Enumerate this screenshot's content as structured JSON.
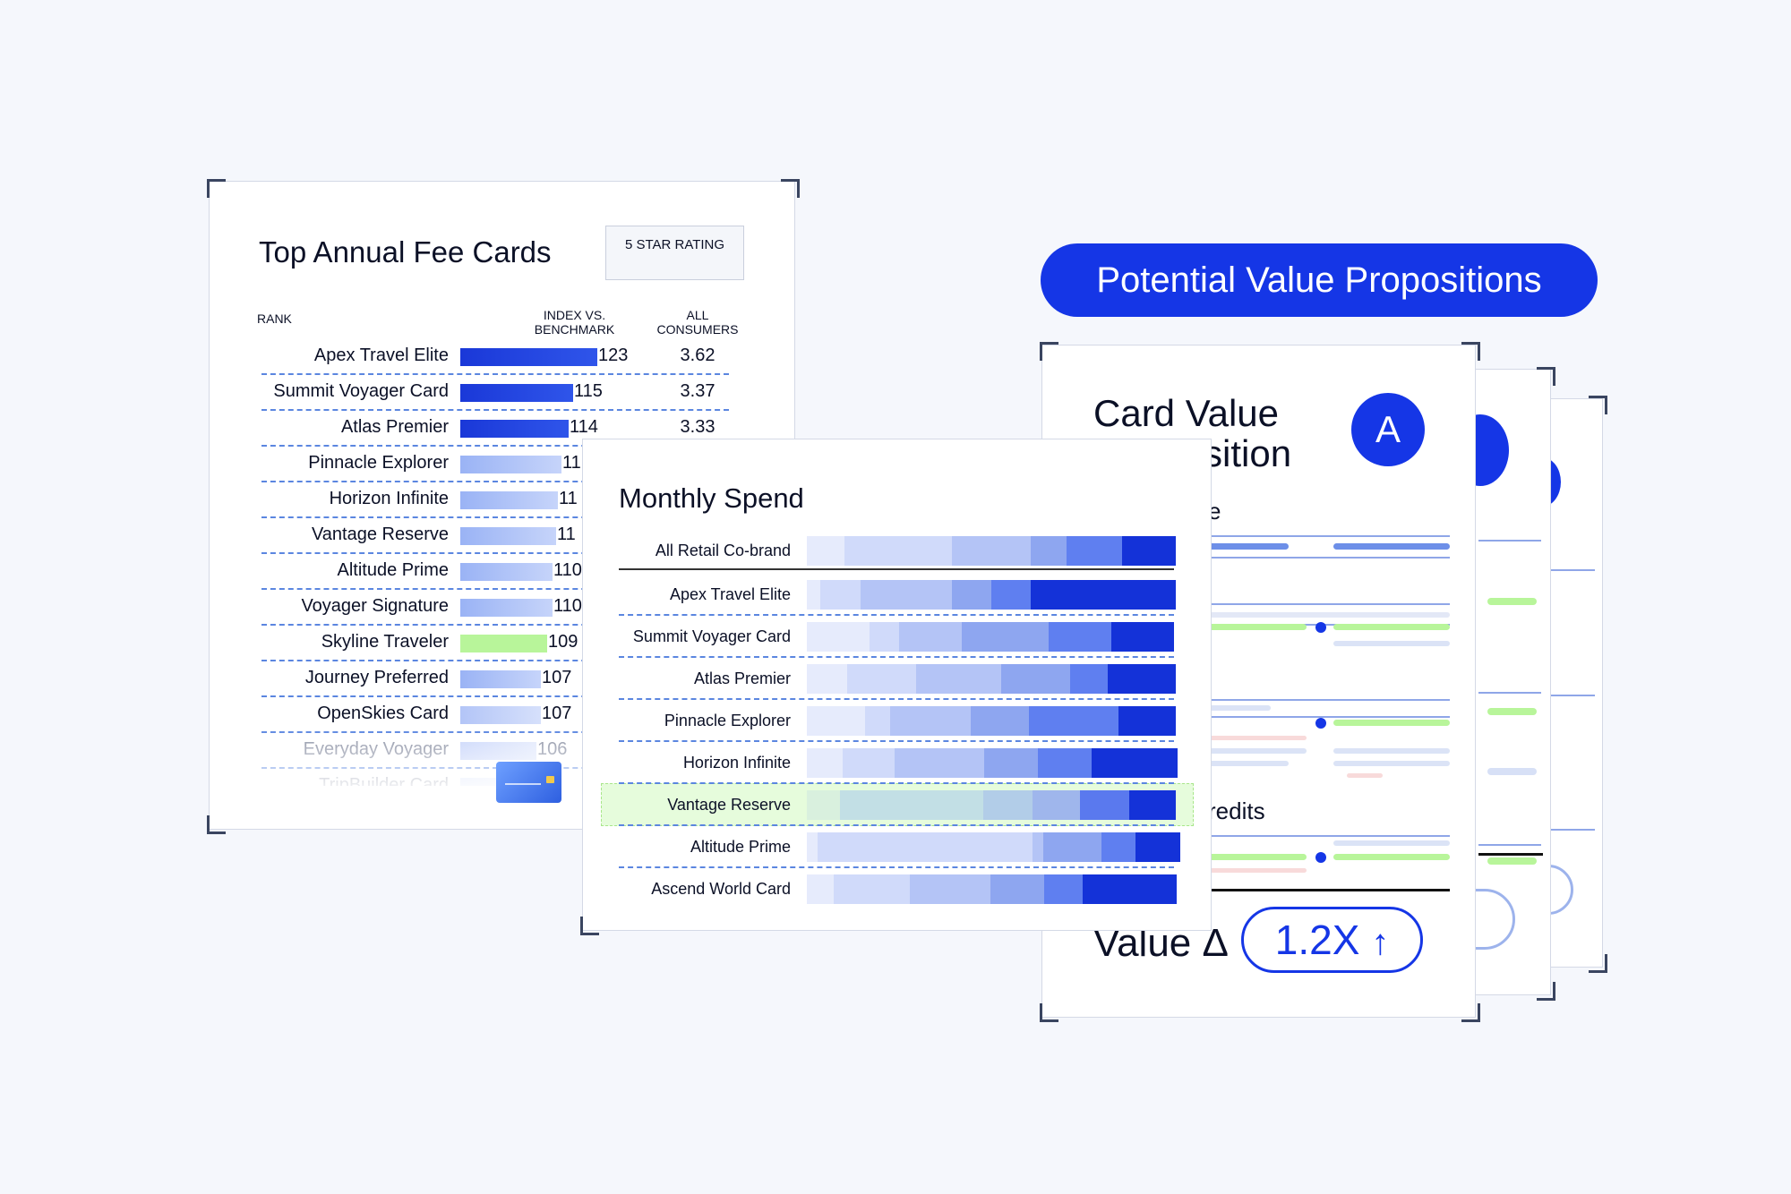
{
  "top_annual_fee": {
    "title": "Top Annual Fee Cards",
    "badge": "5 STAR RATING",
    "col_rank": "RANK",
    "col_index": "INDEX VS. BENCHMARK",
    "col_all": "ALL CONSUMERS",
    "rows": [
      {
        "name": "Apex Travel Elite",
        "index": "123",
        "all": "3.62"
      },
      {
        "name": "Summit Voyager Card",
        "index": "115",
        "all": "3.37"
      },
      {
        "name": "Atlas Premier",
        "index": "114",
        "all": "3.33"
      },
      {
        "name": "Pinnacle Explorer",
        "index": "11"
      },
      {
        "name": "Horizon Infinite",
        "index": "11"
      },
      {
        "name": "Vantage Reserve",
        "index": "11"
      },
      {
        "name": "Altitude Prime",
        "index": "110"
      },
      {
        "name": "Voyager Signature",
        "index": "110"
      },
      {
        "name": "Skyline Traveler",
        "index": "109"
      },
      {
        "name": "Journey Preferred",
        "index": "107"
      },
      {
        "name": "OpenSkies Card",
        "index": "107"
      },
      {
        "name": "Everyday Voyager",
        "index": "106"
      },
      {
        "name": "TripBuilder Card",
        "index": ""
      }
    ]
  },
  "monthly_spend": {
    "title": "Monthly Spend",
    "rows": [
      {
        "name": "All Retail Co-brand"
      },
      {
        "name": "Apex Travel Elite"
      },
      {
        "name": "Summit Voyager Card"
      },
      {
        "name": "Atlas Premier"
      },
      {
        "name": "Pinnacle Explorer"
      },
      {
        "name": "Horizon Infinite"
      },
      {
        "name": "Vantage Reserve"
      },
      {
        "name": "Altitude Prime"
      },
      {
        "name": "Ascend World Card"
      }
    ]
  },
  "value_props": {
    "header": "Potential Value Propositions",
    "card_title_line1": "Card Value",
    "card_title_line2_visible": "sition",
    "badge_letter": "A",
    "partial_label_1": "e",
    "partial_label_2": "redits",
    "value_label": "Value Δ",
    "multiplier": "1.2X",
    "arrow": "↑"
  },
  "colors": {
    "accent": "#1536e6",
    "highlight": "#b8f59a",
    "dark_blue": "#0f2bd6"
  }
}
